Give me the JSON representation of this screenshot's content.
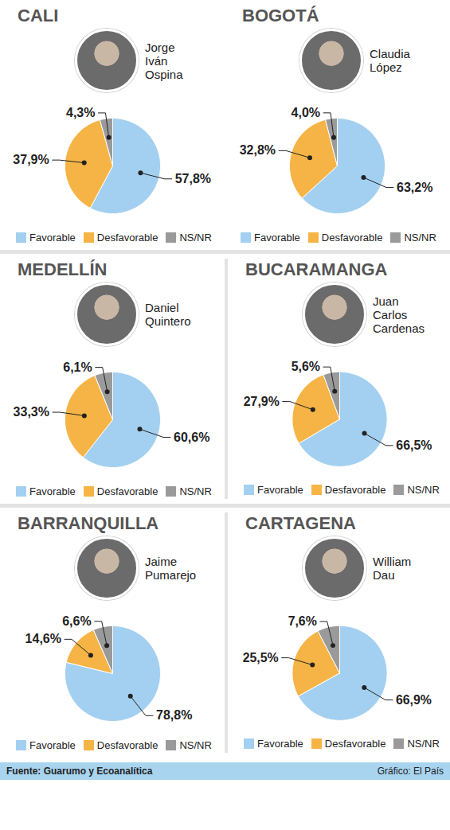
{
  "chart_data": [
    {
      "type": "pie",
      "title": "CALI",
      "subtitle": "Jorge Iván Ospina",
      "categories": [
        "Favorable",
        "Desfavorable",
        "NS/NR"
      ],
      "values": [
        57.8,
        37.9,
        4.3
      ],
      "value_labels": [
        "57,8%",
        "37,9%",
        "4,3%"
      ],
      "colors": [
        "#a3d0f0",
        "#f5b445",
        "#9a9a9a"
      ],
      "data_labels": true,
      "legend": "bottom"
    },
    {
      "type": "pie",
      "title": "BOGOTÁ",
      "subtitle": "Claudia López",
      "categories": [
        "Favorable",
        "Desfavorable",
        "NS/NR"
      ],
      "values": [
        63.2,
        32.8,
        4.0
      ],
      "value_labels": [
        "63,2%",
        "32,8%",
        "4,0%"
      ],
      "colors": [
        "#a3d0f0",
        "#f5b445",
        "#9a9a9a"
      ],
      "data_labels": true,
      "legend": "bottom"
    },
    {
      "type": "pie",
      "title": "MEDELLÍN",
      "subtitle": "Daniel Quintero",
      "categories": [
        "Favorable",
        "Desfavorable",
        "NS/NR"
      ],
      "values": [
        60.6,
        33.3,
        6.1
      ],
      "value_labels": [
        "60,6%",
        "33,3%",
        "6,1%"
      ],
      "colors": [
        "#a3d0f0",
        "#f5b445",
        "#9a9a9a"
      ],
      "data_labels": true,
      "legend": "bottom"
    },
    {
      "type": "pie",
      "title": "BUCARAMANGA",
      "subtitle": "Juan Carlos Cardenas",
      "categories": [
        "Favorable",
        "Desfavorable",
        "NS/NR"
      ],
      "values": [
        66.5,
        27.9,
        5.6
      ],
      "value_labels": [
        "66,5%",
        "27,9%",
        "5,6%"
      ],
      "colors": [
        "#a3d0f0",
        "#f5b445",
        "#9a9a9a"
      ],
      "data_labels": true,
      "legend": "bottom"
    },
    {
      "type": "pie",
      "title": "BARRANQUILLA",
      "subtitle": "Jaime Pumarejo",
      "categories": [
        "Favorable",
        "Desfavorable",
        "NS/NR"
      ],
      "values": [
        78.8,
        14.6,
        6.6
      ],
      "value_labels": [
        "78,8%",
        "14,6%",
        "6,6%"
      ],
      "colors": [
        "#a3d0f0",
        "#f5b445",
        "#9a9a9a"
      ],
      "data_labels": true,
      "legend": "bottom"
    },
    {
      "type": "pie",
      "title": "CARTAGENA",
      "subtitle": "William Dau",
      "categories": [
        "Favorable",
        "Desfavorable",
        "NS/NR"
      ],
      "values": [
        66.9,
        25.5,
        7.6
      ],
      "value_labels": [
        "66,9%",
        "25,5%",
        "7,6%"
      ],
      "colors": [
        "#a3d0f0",
        "#f5b445",
        "#9a9a9a"
      ],
      "data_labels": true,
      "legend": "bottom"
    }
  ],
  "footer": {
    "source": "Fuente: Guarumo y Ecoanalítica",
    "credit": "Gráfico: El País"
  }
}
